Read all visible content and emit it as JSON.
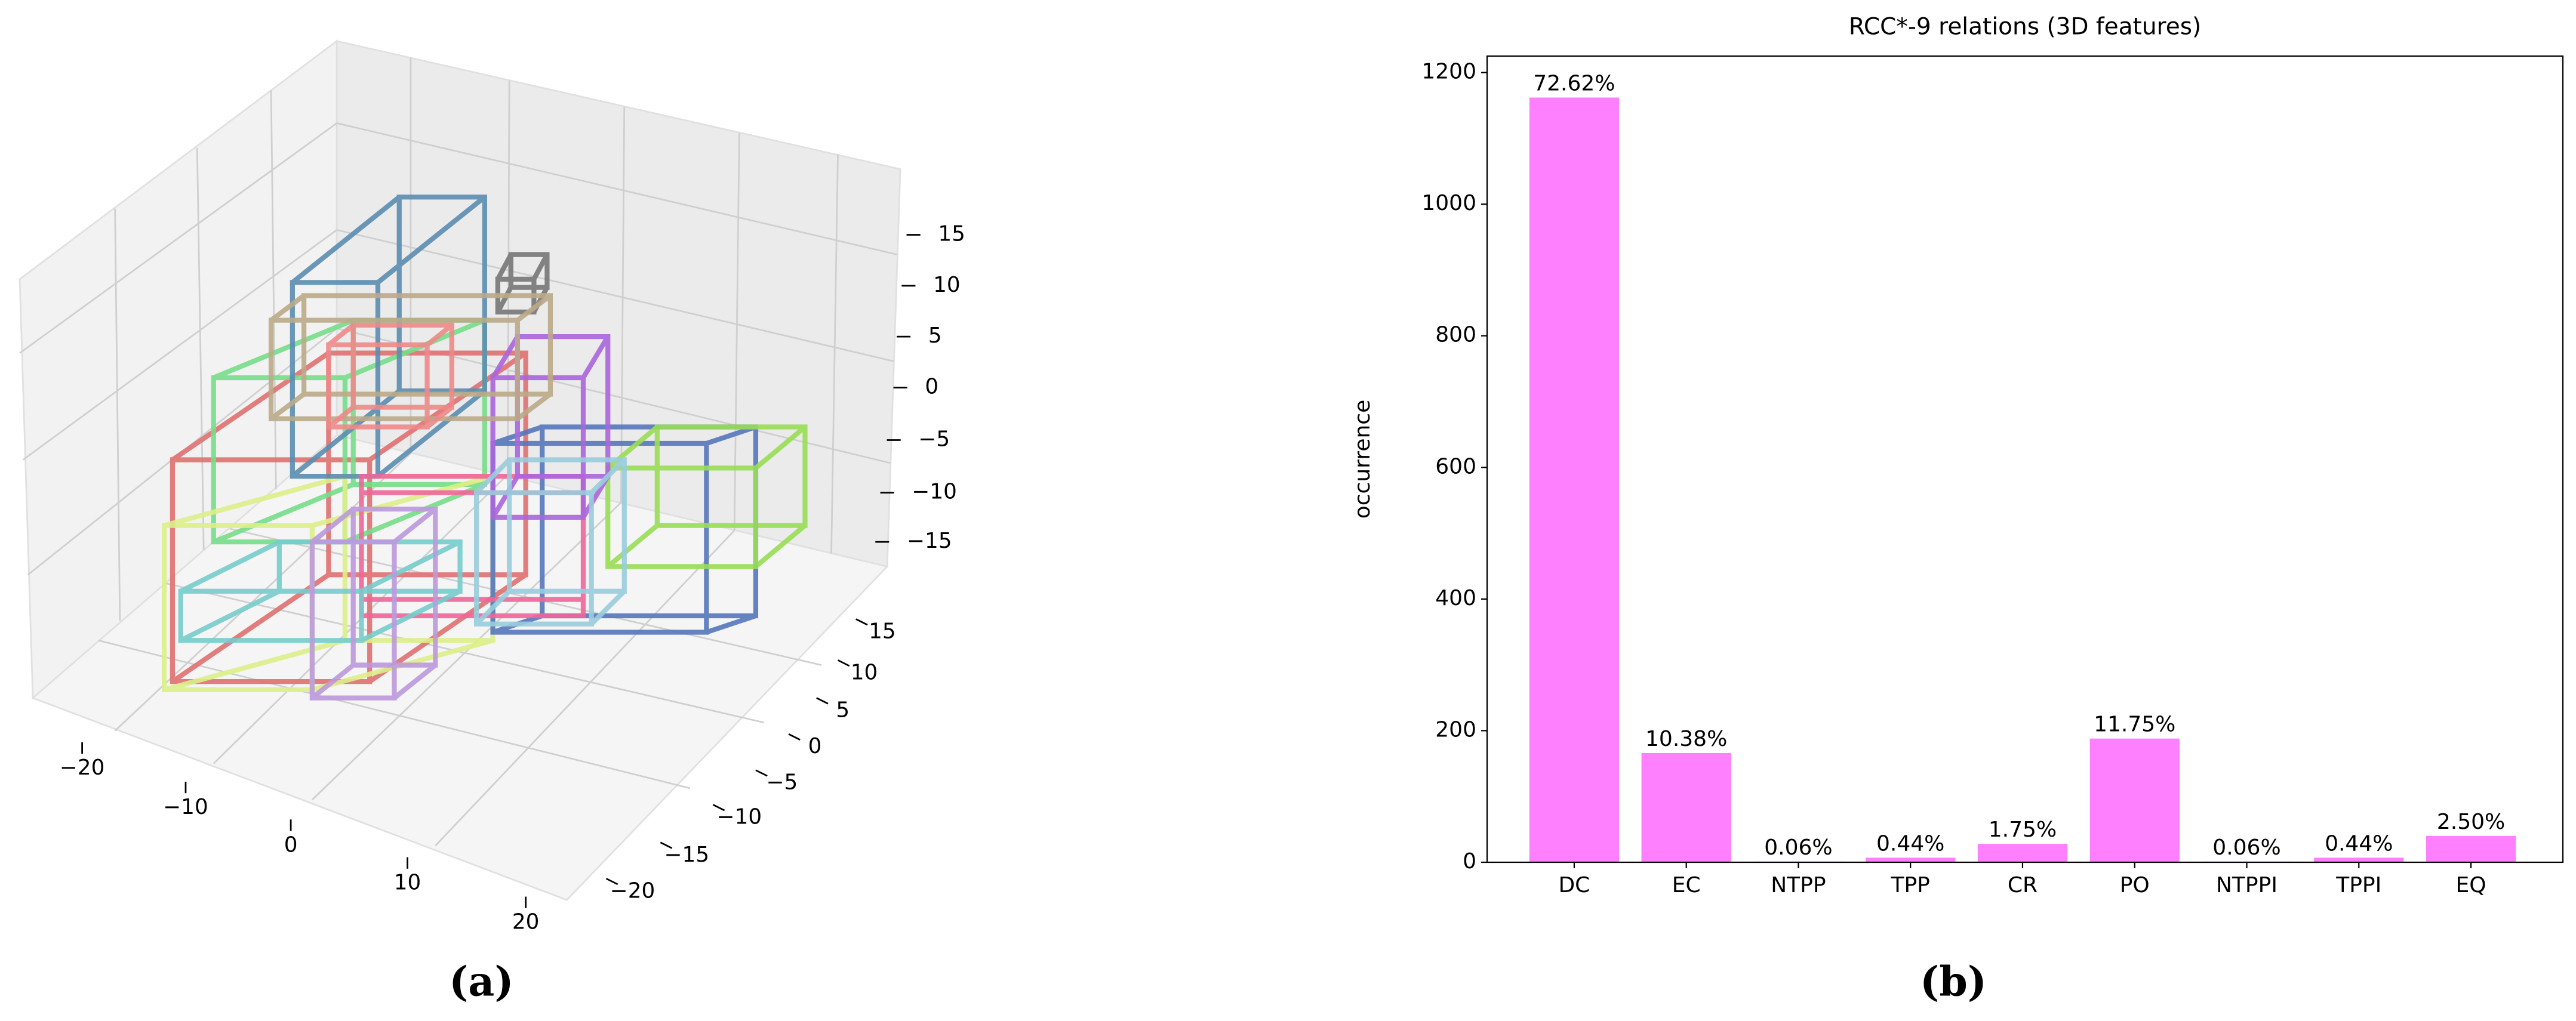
{
  "chart_data": [
    {
      "type": "wireframe3d",
      "caption": "(a)",
      "xticks": [
        {
          "value": -20,
          "label": "−20"
        },
        {
          "value": -10,
          "label": "−10"
        },
        0,
        10,
        20
      ],
      "yticks": [
        {
          "value": -20,
          "label": "−20"
        },
        {
          "value": -15,
          "label": "−15"
        },
        {
          "value": -10,
          "label": "−10"
        },
        {
          "value": -5,
          "label": "−5"
        },
        0,
        5,
        10,
        15
      ],
      "zticks": [
        {
          "value": -15,
          "label": "−15"
        },
        {
          "value": -10,
          "label": "−10"
        },
        {
          "value": -5,
          "label": "−5"
        },
        0,
        5,
        10,
        15
      ]
    },
    {
      "type": "bar",
      "caption": "(b)",
      "title": "RCC*-9 relations (3D features)",
      "ylabel": "occurrence",
      "categories": [
        "DC",
        "EC",
        "NTPP",
        "TPP",
        "CR",
        "PO",
        "NTPPI",
        "TPPI",
        "EQ"
      ],
      "values": [
        1162,
        166,
        1,
        7,
        28,
        188,
        1,
        7,
        40
      ],
      "shares": [
        72.62,
        10.38,
        0.06,
        0.44,
        1.75,
        11.75,
        0.06,
        0.44,
        2.5
      ],
      "share_labels": [
        "72.62%",
        "10.38%",
        "0.06%",
        "0.44%",
        "1.75%",
        "11.75%",
        "0.06%",
        "0.44%",
        "2.50%"
      ],
      "color": "#ff80ff",
      "ylim": [
        0,
        1225
      ],
      "yticks": [
        0,
        200,
        400,
        600,
        800,
        1000,
        1200
      ]
    }
  ]
}
